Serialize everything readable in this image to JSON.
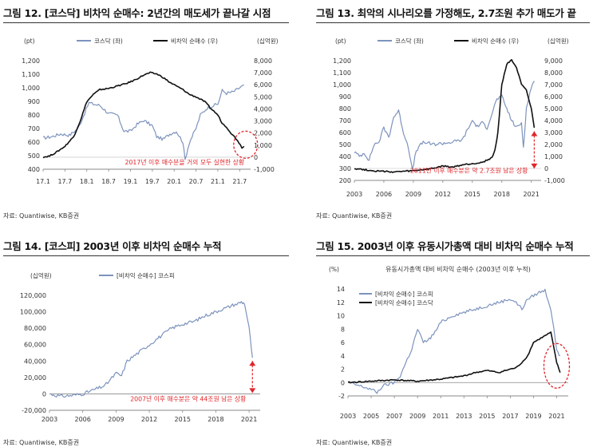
{
  "colors": {
    "kosdaq": "#7d93bd",
    "net_buy": "#111111",
    "annotation": "#e0242a",
    "axis": "#555555"
  },
  "panels": [
    {
      "id": "p12",
      "title": "그림 12. [코스닥] 비차익 순매수: 2년간의 매도세가 끝나갈 시점",
      "source": "자료: Quantiwise, KB증권"
    },
    {
      "id": "p13",
      "title": "그림 13. 최악의 시나리오를 가정해도, 2.7조원 추가 매도가 끝",
      "source": "자료: Quantiwise, KB증권"
    },
    {
      "id": "p14",
      "title": "그림 14. [코스피] 2003년 이후 비차익 순매수 누적",
      "source": "자료: Quantiwise, KB증권"
    },
    {
      "id": "p15",
      "title": "그림 15. 2003년 이후 유동시가총액 대비 비차익 순매수 누적",
      "source": "자료: Quantiwise, KB증권"
    }
  ],
  "chart_data": [
    {
      "type": "line",
      "panel": "p12",
      "left_unit": "(pt)",
      "right_unit": "(십억원)",
      "legend": [
        "코스닥 (좌)",
        "비차익 순매수 (우)"
      ],
      "legend_position": "top",
      "x_ticks": [
        "17.1",
        "17.7",
        "18.1",
        "18.7",
        "19.1",
        "19.7",
        "20.1",
        "20.7",
        "21.1",
        "21.7"
      ],
      "left_ticks": [
        "1,200",
        "1,100",
        "1,000",
        "900",
        "800",
        "700",
        "600",
        "500",
        "400"
      ],
      "right_ticks": [
        "8,000",
        "7,000",
        "6,000",
        "5,000",
        "4,000",
        "3,000",
        "2,000",
        "1,000",
        "0",
        "-1,000"
      ],
      "ylim_left": [
        400,
        1200
      ],
      "ylim_right": [
        -1000,
        8000
      ],
      "x_range": [
        2017.0,
        2021.75
      ],
      "annotation": "2017년 이후 매수분을 거의 모두 실현한 상황",
      "series": [
        {
          "name": "코스닥 (좌)",
          "axis": "left",
          "x": [
            2017.0,
            2017.2,
            2017.4,
            2017.6,
            2017.8,
            2017.92,
            2018.05,
            2018.15,
            2018.3,
            2018.5,
            2018.7,
            2018.85,
            2019.0,
            2019.15,
            2019.3,
            2019.5,
            2019.6,
            2019.75,
            2019.9,
            2020.05,
            2020.2,
            2020.25,
            2020.35,
            2020.5,
            2020.6,
            2020.75,
            2020.9,
            2021.0,
            2021.1,
            2021.2,
            2021.35,
            2021.5,
            2021.6
          ],
          "y": [
            630,
            640,
            660,
            650,
            700,
            790,
            890,
            880,
            870,
            810,
            800,
            680,
            680,
            730,
            760,
            720,
            640,
            620,
            660,
            680,
            600,
            470,
            600,
            700,
            800,
            850,
            870,
            880,
            980,
            960,
            970,
            1000,
            1020
          ]
        },
        {
          "name": "비차익 순매수 (우)",
          "axis": "right",
          "x": [
            2017.0,
            2017.15,
            2017.3,
            2017.5,
            2017.7,
            2017.85,
            2018.0,
            2018.15,
            2018.3,
            2018.5,
            2018.7,
            2018.9,
            2019.1,
            2019.3,
            2019.45,
            2019.6,
            2019.75,
            2019.9,
            2020.05,
            2020.2,
            2020.35,
            2020.5,
            2020.7,
            2020.85,
            2021.0,
            2021.1,
            2021.2,
            2021.3,
            2021.45,
            2021.55,
            2021.6
          ],
          "y": [
            0,
            100,
            400,
            900,
            1700,
            3000,
            4600,
            5200,
            5600,
            5700,
            5900,
            6100,
            6400,
            6800,
            7000,
            6900,
            6600,
            6200,
            5900,
            5600,
            5200,
            5000,
            4600,
            4000,
            3500,
            2800,
            2500,
            2000,
            1400,
            800,
            900
          ]
        }
      ]
    },
    {
      "type": "line",
      "panel": "p13",
      "left_unit": "(pt)",
      "right_unit": "(십억원)",
      "legend": [
        "코스닥 (좌)",
        "비차익 순매수 (우)"
      ],
      "legend_position": "top",
      "x_ticks": [
        "2003",
        "2006",
        "2009",
        "2012",
        "2015",
        "2018",
        "2021"
      ],
      "left_ticks": [
        "1,200",
        "1,100",
        "1,000",
        "900",
        "800",
        "700",
        "600",
        "500",
        "400",
        "300",
        "200"
      ],
      "right_ticks": [
        "9,000",
        "8,000",
        "7,000",
        "6,000",
        "5,000",
        "4,000",
        "3,000",
        "2,000",
        "1,000",
        "0",
        "-1,000"
      ],
      "ylim_left": [
        200,
        1200
      ],
      "ylim_right": [
        -1000,
        9000
      ],
      "x_range": [
        2003,
        2022
      ],
      "annotation": "2011년 이후 매수분은 약 2.7조원 남은 상황",
      "series": [
        {
          "name": "코스닥 (좌)",
          "axis": "left",
          "x": [
            2003,
            2003.5,
            2004,
            2004.5,
            2005,
            2005.5,
            2006,
            2006.5,
            2007,
            2007.5,
            2008,
            2008.5,
            2008.9,
            2009.3,
            2010,
            2011,
            2012,
            2013,
            2014,
            2015,
            2015.5,
            2016,
            2016.5,
            2017,
            2017.5,
            2018,
            2018.5,
            2019,
            2019.5,
            2020,
            2020.2,
            2020.5,
            2021,
            2021.3
          ],
          "y": [
            440,
            400,
            430,
            370,
            500,
            520,
            640,
            560,
            730,
            780,
            600,
            480,
            280,
            450,
            520,
            500,
            510,
            520,
            540,
            700,
            650,
            680,
            640,
            760,
            880,
            900,
            800,
            700,
            640,
            680,
            480,
            800,
            980,
            1030
          ]
        },
        {
          "name": "비차익 순매수 (우)",
          "axis": "right",
          "x": [
            2003,
            2005,
            2007,
            2009,
            2010,
            2011,
            2012,
            2013,
            2014,
            2015,
            2016,
            2016.5,
            2017,
            2017.3,
            2017.6,
            2018,
            2018.5,
            2019,
            2019.5,
            2020,
            2020.5,
            2021,
            2021.3
          ],
          "y": [
            0,
            -200,
            -300,
            -200,
            -100,
            0,
            200,
            100,
            300,
            400,
            500,
            700,
            900,
            1500,
            3000,
            7000,
            8700,
            9100,
            8400,
            7000,
            6500,
            5000,
            3400
          ]
        }
      ]
    },
    {
      "type": "line",
      "panel": "p14",
      "left_unit": "(십억원)",
      "legend": [
        "[비차익 순매수] 코스피"
      ],
      "legend_position": "top",
      "x_ticks": [
        "2003",
        "2006",
        "2009",
        "2012",
        "2015",
        "2018",
        "2021"
      ],
      "left_ticks": [
        "120,000",
        "100,000",
        "80,000",
        "60,000",
        "40,000",
        "20,000",
        "0",
        "-20,000"
      ],
      "ylim": [
        -20000,
        120000
      ],
      "x_range": [
        2003,
        2022
      ],
      "annotation": "2007년 이후 매수분은 약 44조원 남은 상황",
      "series": [
        {
          "name": "[비차익 순매수] 코스피",
          "x": [
            2003,
            2004,
            2005,
            2006,
            2007,
            2008,
            2009,
            2009.5,
            2010,
            2010.5,
            2011,
            2011.5,
            2012,
            2013,
            2014,
            2015,
            2016,
            2017,
            2018,
            2018.5,
            2019,
            2019.5,
            2020,
            2020.3,
            2020.6,
            2021,
            2021.3
          ],
          "y": [
            0,
            -3000,
            -2000,
            0,
            5000,
            10000,
            25000,
            22000,
            40000,
            45000,
            50000,
            55000,
            60000,
            70000,
            80000,
            85000,
            88000,
            95000,
            100000,
            103000,
            105000,
            108000,
            110000,
            112000,
            110000,
            80000,
            44000
          ]
        }
      ]
    },
    {
      "type": "line",
      "panel": "p15",
      "left_unit": "(%)",
      "chart_title": "유동시가총액 대비 비차익 순매수 (2003년 이후 누적)",
      "legend": [
        "[비차익 순매수] 코스피",
        "[비차익 순매수] 코스닥"
      ],
      "legend_position": "top",
      "x_ticks": [
        "2003",
        "2005",
        "2007",
        "2009",
        "2011",
        "2013",
        "2015",
        "2017",
        "2019",
        "2021"
      ],
      "left_ticks": [
        "14",
        "12",
        "10",
        "8",
        "6",
        "4",
        "2",
        "0",
        "-2"
      ],
      "ylim": [
        -2,
        14
      ],
      "x_range": [
        2003,
        2022
      ],
      "series": [
        {
          "name": "[비차익 순매수] 코스피",
          "x": [
            2003,
            2004,
            2005,
            2005.5,
            2006,
            2007,
            2007.5,
            2008,
            2008.5,
            2009,
            2009.5,
            2010,
            2010.5,
            2011,
            2012,
            2013,
            2014,
            2015,
            2016,
            2017,
            2017.5,
            2018,
            2018.5,
            2019,
            2019.5,
            2020,
            2020.5,
            2021,
            2021.3
          ],
          "y": [
            0,
            -0.5,
            -1.0,
            -1.5,
            -0.5,
            0,
            1,
            3,
            5,
            8,
            6,
            6.5,
            7.5,
            9,
            10,
            10.5,
            11,
            11.5,
            12,
            12.5,
            12,
            11,
            12.5,
            13,
            13.5,
            13.8,
            11,
            5,
            4
          ]
        },
        {
          "name": "[비차익 순매수] 코스닥",
          "x": [
            2003,
            2005,
            2007,
            2009,
            2011,
            2013,
            2014,
            2015,
            2016,
            2017,
            2017.5,
            2018,
            2018.5,
            2019,
            2019.5,
            2020,
            2020.5,
            2021,
            2021.3
          ],
          "y": [
            0,
            0.2,
            0.4,
            0.2,
            0.5,
            1.0,
            1.5,
            1.8,
            1.5,
            2.0,
            2.2,
            3.0,
            4.0,
            6.0,
            6.5,
            7.0,
            7.5,
            3.0,
            1.5
          ]
        }
      ]
    }
  ]
}
